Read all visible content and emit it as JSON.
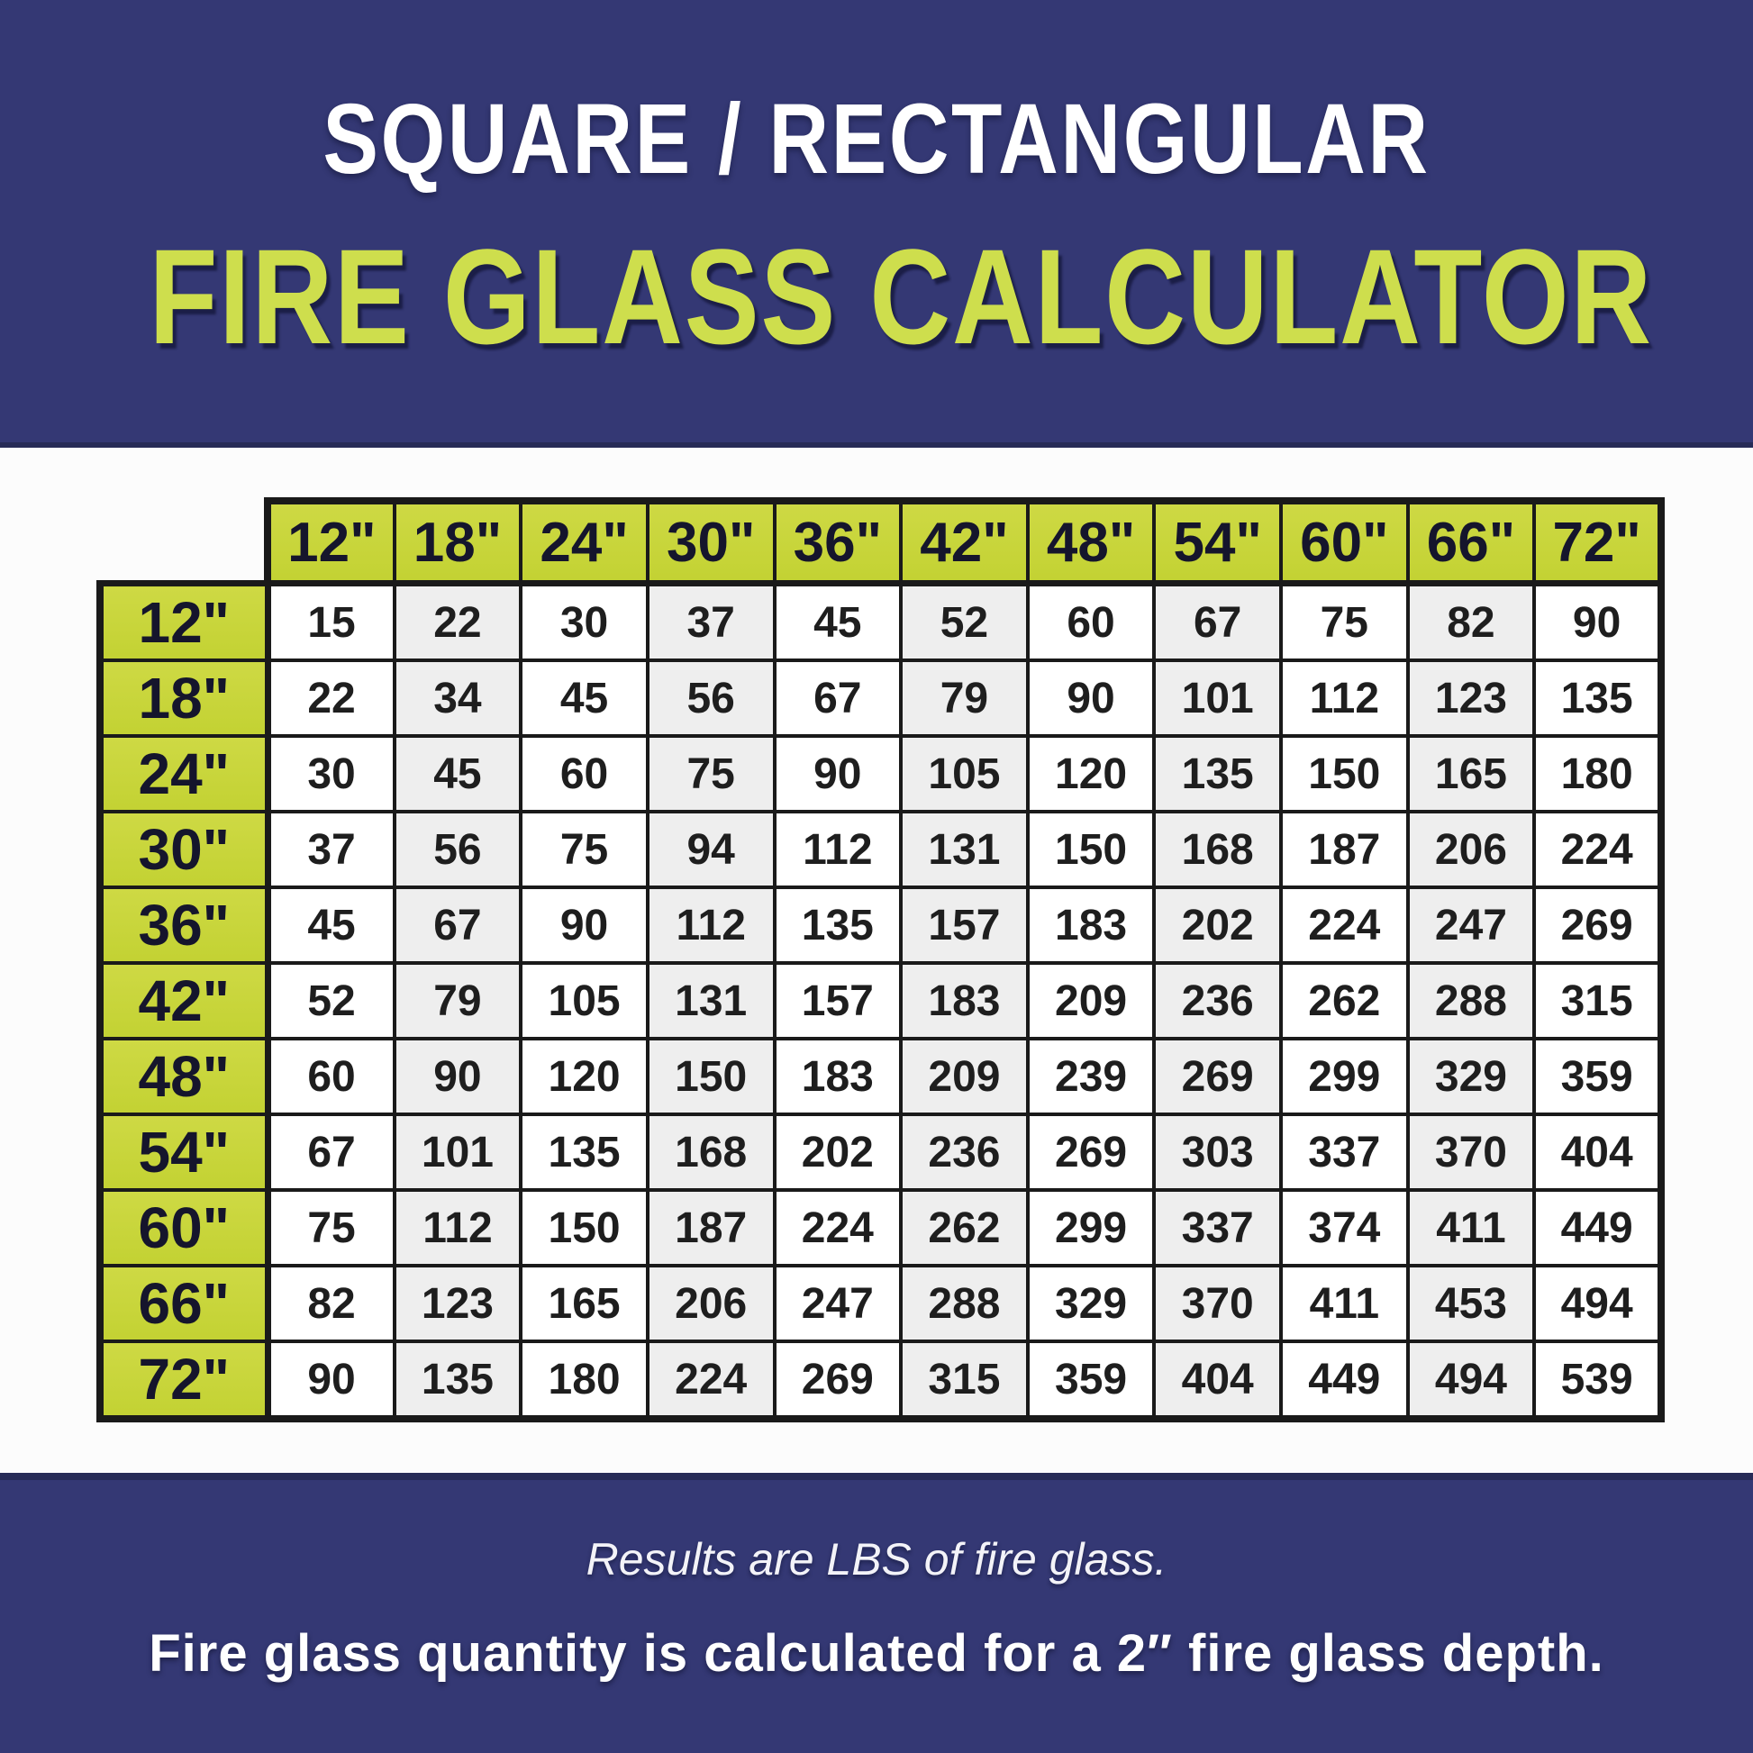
{
  "title": {
    "line1": "SQUARE / RECTANGULAR",
    "line2": "FIRE GLASS CALCULATOR"
  },
  "footer": {
    "line1": "Results are LBS of fire glass.",
    "line2": "Fire glass quantity is calculated for a 2″ fire glass depth."
  },
  "colors": {
    "navy_band": "#343874",
    "band_edge": "#272b57",
    "header_green": "#c6d63c",
    "title_green": "#cede4d",
    "title_white": "#ffffff",
    "table_border": "#1a1a1a",
    "cell_white": "#ffffff",
    "cell_alt_gray": "#eeeeee"
  },
  "chart_data": {
    "type": "table",
    "title": "SQUARE / RECTANGULAR FIRE GLASS CALCULATOR",
    "units": "LBS of fire glass",
    "assumption": "Fire glass quantity is calculated for a 2″ fire glass depth.",
    "column_headers": [
      "12\"",
      "18\"",
      "24\"",
      "30\"",
      "36\"",
      "42\"",
      "48\"",
      "54\"",
      "60\"",
      "66\"",
      "72\""
    ],
    "row_headers": [
      "12\"",
      "18\"",
      "24\"",
      "30\"",
      "36\"",
      "42\"",
      "48\"",
      "54\"",
      "60\"",
      "66\"",
      "72\""
    ],
    "values_lbs": [
      [
        15,
        22,
        30,
        37,
        45,
        52,
        60,
        67,
        75,
        82,
        90
      ],
      [
        22,
        34,
        45,
        56,
        67,
        79,
        90,
        101,
        112,
        123,
        135
      ],
      [
        30,
        45,
        60,
        75,
        90,
        105,
        120,
        135,
        150,
        165,
        180
      ],
      [
        37,
        56,
        75,
        94,
        112,
        131,
        150,
        168,
        187,
        206,
        224
      ],
      [
        45,
        67,
        90,
        112,
        135,
        157,
        183,
        202,
        224,
        247,
        269
      ],
      [
        52,
        79,
        105,
        131,
        157,
        183,
        209,
        236,
        262,
        288,
        315
      ],
      [
        60,
        90,
        120,
        150,
        183,
        209,
        239,
        269,
        299,
        329,
        359
      ],
      [
        67,
        101,
        135,
        168,
        202,
        236,
        269,
        303,
        337,
        370,
        404
      ],
      [
        75,
        112,
        150,
        187,
        224,
        262,
        299,
        337,
        374,
        411,
        449
      ],
      [
        82,
        123,
        165,
        206,
        247,
        288,
        329,
        370,
        411,
        453,
        494
      ],
      [
        90,
        135,
        180,
        224,
        269,
        315,
        359,
        404,
        449,
        494,
        539
      ]
    ]
  }
}
